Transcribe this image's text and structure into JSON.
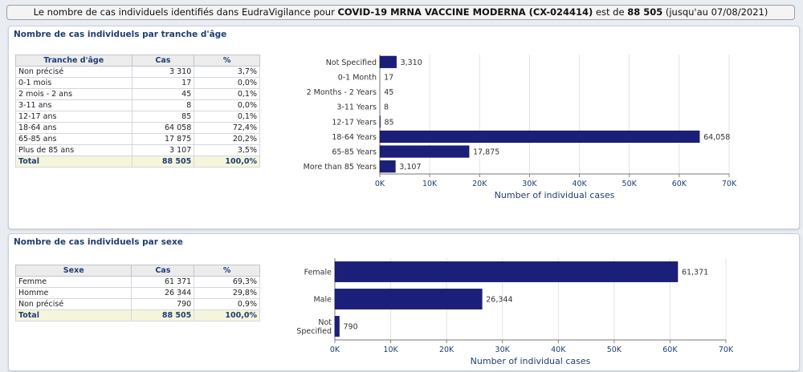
{
  "header": {
    "prefix": "Le nombre de cas individuels identifiés dans EudraVigilance pour ",
    "product": "COVID-19 MRNA VACCINE MODERNA (CX-024414)",
    "middle": " est de ",
    "total": "88 505",
    "suffix": " (jusqu'au 07/08/2021)"
  },
  "age_section": {
    "title": "Nombre de cas individuels par tranche d'âge",
    "table": {
      "headers": [
        "Tranche d'âge",
        "Cas",
        "%"
      ],
      "rows": [
        [
          "Non précisé",
          "3 310",
          "3,7%"
        ],
        [
          "0-1 mois",
          "17",
          "0,0%"
        ],
        [
          "2 mois - 2 ans",
          "45",
          "0,1%"
        ],
        [
          "3-11 ans",
          "8",
          "0,0%"
        ],
        [
          "12-17 ans",
          "85",
          "0,1%"
        ],
        [
          "18-64 ans",
          "64 058",
          "72,4%"
        ],
        [
          "65-85 ans",
          "17 875",
          "20,2%"
        ],
        [
          "Plus de 85 ans",
          "3 107",
          "3,5%"
        ]
      ],
      "total": [
        "Total",
        "88 505",
        "100,0%"
      ]
    }
  },
  "sex_section": {
    "title": "Nombre de cas individuels par sexe",
    "table": {
      "headers": [
        "Sexe",
        "Cas",
        "%"
      ],
      "rows": [
        [
          "Femme",
          "61 371",
          "69,3%"
        ],
        [
          "Homme",
          "26 344",
          "29,8%"
        ],
        [
          "Non précisé",
          "790",
          "0,9%"
        ]
      ],
      "total": [
        "Total",
        "88 505",
        "100,0%"
      ]
    }
  },
  "chart_data": [
    {
      "type": "bar",
      "orientation": "horizontal",
      "categories": [
        "Not Specified",
        "0-1 Month",
        "2 Months - 2 Years",
        "3-11 Years",
        "12-17 Years",
        "18-64 Years",
        "65-85 Years",
        "More than 85 Years"
      ],
      "values": [
        3310,
        17,
        45,
        8,
        85,
        64058,
        17875,
        3107
      ],
      "value_labels": [
        "3,310",
        "17",
        "45",
        "8",
        "85",
        "64,058",
        "17,875",
        "3,107"
      ],
      "xlabel": "Number of individual cases",
      "xlim": [
        0,
        70000
      ],
      "ticks": [
        0,
        10000,
        20000,
        30000,
        40000,
        50000,
        60000,
        70000
      ],
      "tick_labels": [
        "0K",
        "10K",
        "20K",
        "30K",
        "40K",
        "50K",
        "60K",
        "70K"
      ],
      "grid": true,
      "bar_color": "#1c1f7a"
    },
    {
      "type": "bar",
      "orientation": "horizontal",
      "categories": [
        "Female",
        "Male",
        "Not Specified"
      ],
      "values": [
        61371,
        26344,
        790
      ],
      "value_labels": [
        "61,371",
        "26,344",
        "790"
      ],
      "xlabel": "Number of individual cases",
      "xlim": [
        0,
        70000
      ],
      "ticks": [
        0,
        10000,
        20000,
        30000,
        40000,
        50000,
        60000,
        70000
      ],
      "tick_labels": [
        "0K",
        "10K",
        "20K",
        "30K",
        "40K",
        "50K",
        "60K",
        "70K"
      ],
      "grid": true,
      "bar_color": "#1c1f7a"
    }
  ]
}
